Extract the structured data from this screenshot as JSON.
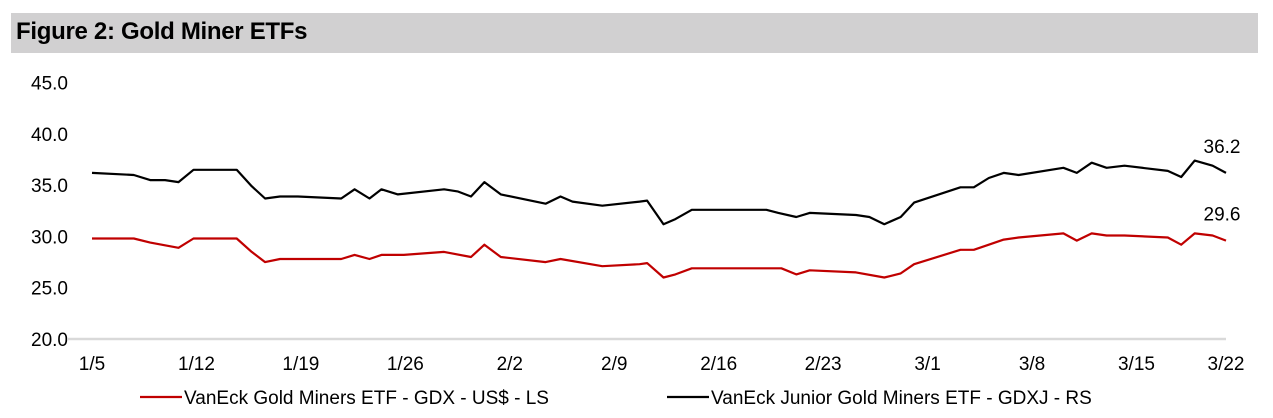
{
  "title": "Figure 2: Gold Miner ETFs",
  "chart_data": {
    "type": "line",
    "title": "Figure 2: Gold Miner ETFs",
    "xlabel": "",
    "ylabel": "",
    "x_unit": "trading-calendar days since 1/5",
    "xlim": [
      0,
      76
    ],
    "ylim": [
      20,
      45
    ],
    "yticks": [
      20,
      25,
      30,
      35,
      40,
      45
    ],
    "ytick_labels": [
      "20.0",
      "25.0",
      "30.0",
      "35.0",
      "40.0",
      "45.0"
    ],
    "xticks": [
      0,
      7,
      14,
      21,
      28,
      35,
      42,
      49,
      56,
      63,
      70,
      76
    ],
    "xtick_labels": [
      "1/5",
      "1/12",
      "1/19",
      "1/26",
      "2/2",
      "2/9",
      "2/16",
      "2/23",
      "3/1",
      "3/8",
      "3/15",
      "3/22"
    ],
    "grid": false,
    "legend_position": "bottom",
    "series": [
      {
        "name": "VanEck Gold Miners ETF  - GDX  - US$ - LS",
        "color": "#c00000",
        "end_label": "29.6",
        "x": [
          0,
          2.8,
          3.9,
          5.8,
          6.8,
          9.7,
          10.7,
          11.6,
          12.6,
          16.7,
          17.6,
          18.6,
          19.4,
          20.9,
          23.6,
          25.4,
          26.3,
          27.4,
          30.4,
          31.4,
          34.2,
          36.7,
          37.2,
          38.3,
          39.1,
          40.2,
          46.2,
          47.2,
          48.1,
          51.2,
          53.1,
          54.2,
          55.1,
          58.2,
          59.1,
          60.1,
          61.1,
          62.1,
          65.1,
          66.0,
          67.0,
          68.0,
          69.2,
          72.1,
          73.0,
          73.9,
          75.1,
          76
        ],
        "values": [
          29.8,
          29.8,
          29.4,
          28.9,
          29.8,
          29.8,
          28.5,
          27.5,
          27.8,
          27.8,
          28.2,
          27.8,
          28.2,
          28.2,
          28.5,
          28.0,
          29.2,
          28.0,
          27.5,
          27.8,
          27.1,
          27.3,
          27.4,
          26.0,
          26.3,
          26.9,
          26.9,
          26.3,
          26.7,
          26.5,
          26.0,
          26.4,
          27.3,
          28.7,
          28.7,
          29.2,
          29.7,
          29.9,
          30.3,
          29.6,
          30.3,
          30.1,
          30.1,
          29.9,
          29.2,
          30.3,
          30.1,
          29.6
        ]
      },
      {
        "name": "VanEck Junior Gold Miners ETF - GDXJ - RS",
        "color": "#000000",
        "end_label": "36.2",
        "x": [
          0,
          2.8,
          3.9,
          4.9,
          5.8,
          6.8,
          9.7,
          10.7,
          11.6,
          12.6,
          13.8,
          16.7,
          17.6,
          18.6,
          19.4,
          20.5,
          23.6,
          24.5,
          25.4,
          26.3,
          27.4,
          30.4,
          31.4,
          32.2,
          34.2,
          36.7,
          37.2,
          38.3,
          39.1,
          40.2,
          45.2,
          46.0,
          47.2,
          48.1,
          51.2,
          52.1,
          53.1,
          54.2,
          55.1,
          58.2,
          59.1,
          60.1,
          61.1,
          62.1,
          65.1,
          66.0,
          67.0,
          68.0,
          69.2,
          72.1,
          73.0,
          73.9,
          75.1,
          76
        ],
        "values": [
          36.2,
          36.0,
          35.5,
          35.5,
          35.3,
          36.5,
          36.5,
          34.9,
          33.7,
          33.9,
          33.9,
          33.7,
          34.6,
          33.7,
          34.6,
          34.1,
          34.6,
          34.4,
          33.9,
          35.3,
          34.1,
          33.2,
          33.9,
          33.4,
          33.0,
          33.4,
          33.5,
          31.2,
          31.7,
          32.6,
          32.6,
          32.3,
          31.9,
          32.3,
          32.1,
          31.9,
          31.2,
          31.9,
          33.3,
          34.8,
          34.8,
          35.7,
          36.2,
          36.0,
          36.7,
          36.2,
          37.2,
          36.7,
          36.9,
          36.4,
          35.8,
          37.4,
          36.9,
          36.2
        ]
      }
    ]
  }
}
